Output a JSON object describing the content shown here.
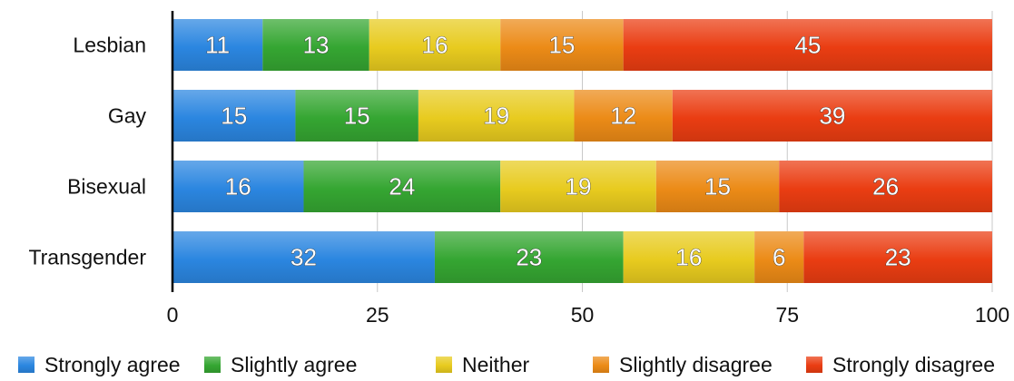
{
  "chart_data": {
    "type": "bar",
    "orientation": "horizontal",
    "stacked": true,
    "categories": [
      "Lesbian",
      "Gay",
      "Bisexual",
      "Transgender"
    ],
    "series": [
      {
        "name": "Strongly agree",
        "color": "#2b86e0",
        "values": [
          11,
          15,
          16,
          32
        ]
      },
      {
        "name": "Slightly agree",
        "color": "#35a632",
        "values": [
          13,
          15,
          24,
          23
        ]
      },
      {
        "name": "Neither",
        "color": "#e8cb1f",
        "values": [
          16,
          19,
          19,
          16
        ]
      },
      {
        "name": "Slightly disagree",
        "color": "#ec8b17",
        "values": [
          15,
          12,
          15,
          6
        ]
      },
      {
        "name": "Strongly disagree",
        "color": "#ea3d12",
        "values": [
          45,
          39,
          26,
          23
        ]
      }
    ],
    "title": "",
    "xlabel": "",
    "ylabel": "",
    "xlim": [
      0,
      100
    ],
    "xticks": [
      0,
      25,
      50,
      75,
      100
    ],
    "grid": true,
    "legend_position": "bottom"
  }
}
